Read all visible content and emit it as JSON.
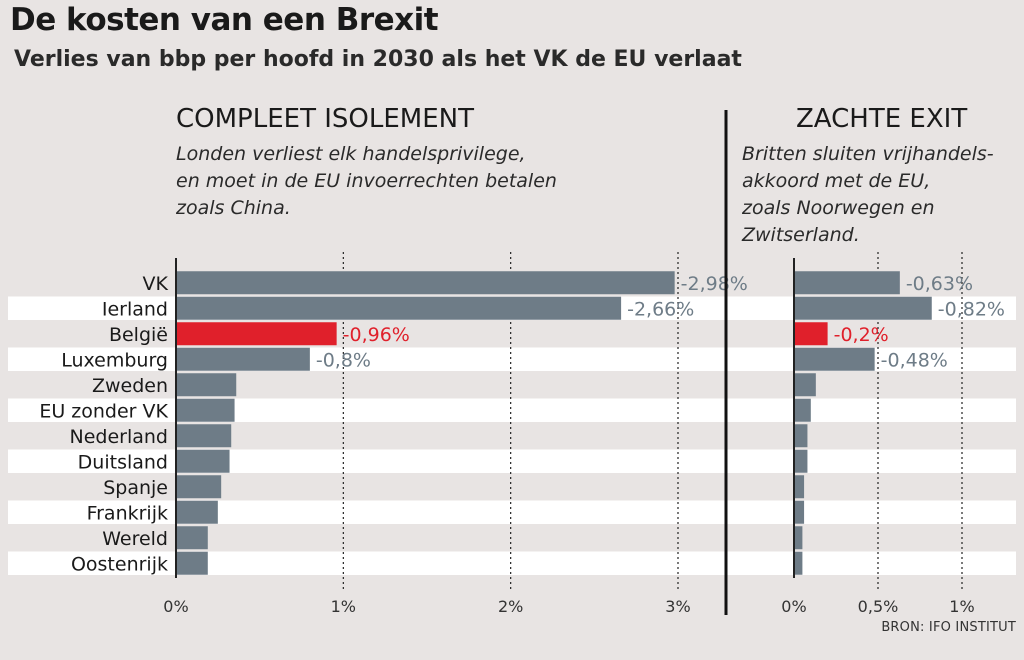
{
  "title": "De kosten van een Brexit",
  "subtitle": "Verlies van bbp per hoofd in 2030 als het VK de EU verlaat",
  "source": "BRON: IFO INSTITUT",
  "colors": {
    "bar": "#6e7c87",
    "highlight": "#e0202b",
    "label": "#6e7c87",
    "stripe": "#ffffff",
    "background": "#e8e4e3"
  },
  "chart_data": [
    {
      "type": "bar",
      "orientation": "horizontal",
      "title": "COMPLEET ISOLEMENT",
      "subtitle": "Londen verliest elk handelsprivilege,\nen moet in de EU invoerrechten betalen\nzoals China.",
      "categories": [
        "VK",
        "Ierland",
        "België",
        "Luxemburg",
        "Zweden",
        "EU zonder VK",
        "Nederland",
        "Duitsland",
        "Spanje",
        "Frankrijk",
        "Wereld",
        "Oostenrijk"
      ],
      "values": [
        2.98,
        2.66,
        0.96,
        0.8,
        0.36,
        0.35,
        0.33,
        0.32,
        0.27,
        0.25,
        0.19,
        0.19
      ],
      "data_labels": [
        "-2,98%",
        "-2,66%",
        "-0,96%",
        "-0,8%",
        "",
        "",
        "",
        "",
        "",
        "",
        "",
        ""
      ],
      "highlight": "België",
      "xlim": [
        0,
        3.3
      ],
      "xticks": [
        0,
        1,
        2,
        3
      ],
      "xtick_labels": [
        "0%",
        "1%",
        "2%",
        "3%"
      ],
      "grid": true
    },
    {
      "type": "bar",
      "orientation": "horizontal",
      "title": "ZACHTE EXIT",
      "subtitle": "Britten sluiten vrijhandels-\nakkoord met de EU,\nzoals Noorwegen en\nZwitserland.",
      "categories": [
        "VK",
        "Ierland",
        "België",
        "Luxemburg",
        "Zweden",
        "EU zonder VK",
        "Nederland",
        "Duitsland",
        "Spanje",
        "Frankrijk",
        "Wereld",
        "Oostenrijk"
      ],
      "values": [
        0.63,
        0.82,
        0.2,
        0.48,
        0.13,
        0.1,
        0.08,
        0.08,
        0.06,
        0.06,
        0.05,
        0.05
      ],
      "data_labels": [
        "-0,63%",
        "-0,82%",
        "-0,2%",
        "-0,48%",
        "",
        "",
        "",
        "",
        "",
        "",
        "",
        ""
      ],
      "highlight": "België",
      "xlim": [
        0,
        1.25
      ],
      "xticks": [
        0,
        0.5,
        1
      ],
      "xtick_labels": [
        "0%",
        "0,5%",
        "1%"
      ],
      "grid": true
    }
  ]
}
